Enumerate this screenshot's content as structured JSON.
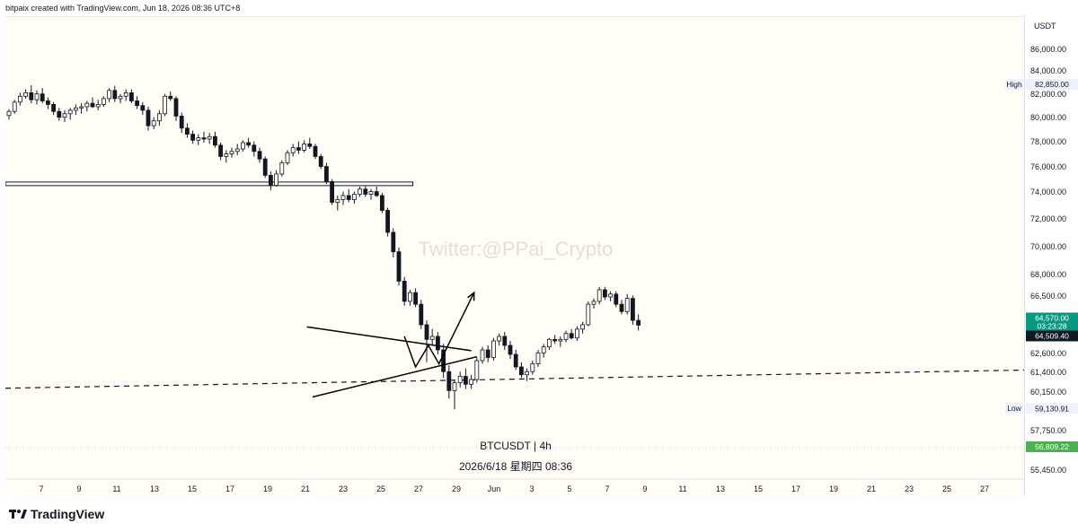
{
  "header": {
    "attribution": "bitpaix created with TradingView.com, Jun 18, 2026 08:36 UTC+8"
  },
  "footer": {
    "brand": "TradingView"
  },
  "watermark": {
    "text": "Twitter:@PPai_Crypto"
  },
  "overlay": {
    "symbol_line": "BTCUSDT | 4h",
    "date_line": "2026/6/18 星期四 08:36"
  },
  "colors": {
    "up": "#131722",
    "down": "#131722",
    "current_label_bg": "#089981",
    "last_label_bg": "#131722",
    "dashed_label_bg": "#4caf50",
    "annotation": "#000000",
    "background": "#fffdf6"
  },
  "chart_data": {
    "type": "candlestick",
    "symbol": "BTCUSDT",
    "interval": "4h",
    "currency": "USDT",
    "ylim": [
      54800,
      88200
    ],
    "y_ticks": [
      {
        "value": 86000,
        "label": "86,000.00"
      },
      {
        "value": 84000,
        "label": "84,000.00"
      },
      {
        "value": 82000,
        "label": "82,000.00"
      },
      {
        "value": 80000,
        "label": "80,000.00"
      },
      {
        "value": 78000,
        "label": "78,000.00"
      },
      {
        "value": 76000,
        "label": "76,000.00"
      },
      {
        "value": 74000,
        "label": "74,000.00"
      },
      {
        "value": 72000,
        "label": "72,000.00"
      },
      {
        "value": 70000,
        "label": "70,000.00"
      },
      {
        "value": 68000,
        "label": "68,000.00"
      },
      {
        "value": 66500,
        "label": "66,500.00"
      },
      {
        "value": 63800,
        "label": "63,800.00"
      },
      {
        "value": 62600,
        "label": "62,600.00"
      },
      {
        "value": 61400,
        "label": "61,400.00"
      },
      {
        "value": 60150,
        "label": "60,150.00"
      },
      {
        "value": 57750,
        "label": "57,750.00"
      },
      {
        "value": 55450,
        "label": "55,450.00"
      }
    ],
    "x_ticks": [
      "7",
      "9",
      "11",
      "13",
      "15",
      "17",
      "19",
      "21",
      "23",
      "25",
      "27",
      "29",
      "Jun",
      "3",
      "5",
      "7",
      "9",
      "11",
      "13",
      "15",
      "17",
      "19",
      "21",
      "23",
      "25",
      "27"
    ],
    "price_labels": {
      "high": {
        "tag": "High",
        "value": "82,850.00",
        "price": 82850
      },
      "low": {
        "tag": "Low",
        "value": "59,130.91",
        "price": 59130.91
      },
      "current": {
        "value": "64,570.00",
        "countdown": "03:23:28",
        "price": 64570
      },
      "last": {
        "value": "64,509.40",
        "price": 64509.4
      },
      "dashed_level": {
        "value": "56,809.22",
        "price": 56809.22
      }
    },
    "candles": [
      [
        80250,
        80800,
        79900,
        80600
      ],
      [
        80600,
        81600,
        80400,
        81400
      ],
      [
        81400,
        82200,
        81100,
        81900
      ],
      [
        81900,
        82500,
        81700,
        82200
      ],
      [
        82200,
        82850,
        81300,
        81600
      ],
      [
        81600,
        82400,
        81200,
        82100
      ],
      [
        82100,
        82600,
        81300,
        81500
      ],
      [
        81500,
        81800,
        80800,
        81200
      ],
      [
        81200,
        81400,
        80300,
        80600
      ],
      [
        80600,
        80900,
        79800,
        80100
      ],
      [
        80100,
        80700,
        79700,
        80400
      ],
      [
        80400,
        80900,
        79900,
        80700
      ],
      [
        80700,
        81200,
        80300,
        80900
      ],
      [
        80900,
        81300,
        80400,
        81000
      ],
      [
        81000,
        81500,
        80600,
        81300
      ],
      [
        81300,
        81800,
        80900,
        81000
      ],
      [
        81000,
        81600,
        80700,
        81200
      ],
      [
        81200,
        81900,
        81000,
        81700
      ],
      [
        81700,
        82600,
        81400,
        82400
      ],
      [
        82400,
        82800,
        81400,
        81700
      ],
      [
        81700,
        82100,
        81300,
        81900
      ],
      [
        81900,
        82500,
        81500,
        82200
      ],
      [
        82200,
        82500,
        81300,
        81500
      ],
      [
        81500,
        81900,
        80800,
        81100
      ],
      [
        81100,
        81400,
        80300,
        80700
      ],
      [
        80700,
        81000,
        79000,
        79400
      ],
      [
        79400,
        80100,
        79100,
        79800
      ],
      [
        79800,
        80700,
        79400,
        80400
      ],
      [
        80400,
        82100,
        80200,
        81900
      ],
      [
        81900,
        82300,
        81500,
        81700
      ],
      [
        81700,
        81900,
        79800,
        80200
      ],
      [
        80200,
        80500,
        78800,
        79200
      ],
      [
        79200,
        79600,
        78400,
        78700
      ],
      [
        78700,
        79000,
        77900,
        78200
      ],
      [
        78200,
        78700,
        77800,
        78400
      ],
      [
        78400,
        78900,
        78000,
        78300
      ],
      [
        78300,
        78800,
        77900,
        78500
      ],
      [
        78500,
        78900,
        77600,
        77800
      ],
      [
        77800,
        78000,
        76600,
        76900
      ],
      [
        76900,
        77400,
        76400,
        77100
      ],
      [
        77100,
        77600,
        76800,
        77300
      ],
      [
        77300,
        77900,
        77000,
        77500
      ],
      [
        77500,
        78200,
        77300,
        78000
      ],
      [
        78000,
        78400,
        77600,
        77800
      ],
      [
        77800,
        78100,
        76900,
        77300
      ],
      [
        77300,
        77600,
        76400,
        76700
      ],
      [
        76700,
        76900,
        75200,
        75400
      ],
      [
        75400,
        75700,
        74200,
        74600
      ],
      [
        74600,
        75800,
        74500,
        75500
      ],
      [
        75500,
        76600,
        75300,
        76400
      ],
      [
        76400,
        77400,
        76200,
        77200
      ],
      [
        77200,
        77900,
        76900,
        77600
      ],
      [
        77600,
        78100,
        77100,
        77400
      ],
      [
        77400,
        78200,
        77200,
        77900
      ],
      [
        77900,
        78400,
        77500,
        77700
      ],
      [
        77700,
        77900,
        76700,
        76900
      ],
      [
        76900,
        77100,
        75900,
        76100
      ],
      [
        76100,
        76400,
        74700,
        74900
      ],
      [
        74900,
        75100,
        73100,
        73300
      ],
      [
        73300,
        73800,
        72700,
        73500
      ],
      [
        73500,
        74100,
        73100,
        73800
      ],
      [
        73800,
        74300,
        73300,
        73500
      ],
      [
        73500,
        74100,
        73200,
        73900
      ],
      [
        73900,
        74500,
        73700,
        74300
      ],
      [
        74300,
        74600,
        73700,
        73900
      ],
      [
        73900,
        74300,
        73500,
        74100
      ],
      [
        74100,
        74500,
        73700,
        73800
      ],
      [
        73800,
        74000,
        72500,
        72700
      ],
      [
        72700,
        72900,
        70800,
        71100
      ],
      [
        71100,
        71400,
        69300,
        69700
      ],
      [
        69700,
        70000,
        67300,
        67600
      ],
      [
        67600,
        67900,
        65900,
        66200
      ],
      [
        66200,
        67000,
        65900,
        66800
      ],
      [
        66800,
        67100,
        65800,
        66000
      ],
      [
        66000,
        66300,
        64300,
        64600
      ],
      [
        64600,
        64900,
        62100,
        63600
      ],
      [
        63600,
        64300,
        63200,
        63800
      ],
      [
        63800,
        64100,
        62600,
        62900
      ],
      [
        62900,
        63300,
        61100,
        61500
      ],
      [
        61500,
        61900,
        59800,
        60300
      ],
      [
        60300,
        61000,
        59130.91,
        60800
      ],
      [
        60800,
        61500,
        60500,
        61200
      ],
      [
        61200,
        61700,
        60400,
        60700
      ],
      [
        60700,
        61300,
        60400,
        61000
      ],
      [
        61000,
        62400,
        60800,
        62200
      ],
      [
        62200,
        63100,
        62000,
        62900
      ],
      [
        62900,
        63200,
        62100,
        62400
      ],
      [
        62400,
        63700,
        62200,
        63500
      ],
      [
        63500,
        64000,
        63200,
        63800
      ],
      [
        63800,
        64100,
        62900,
        63200
      ],
      [
        63200,
        63500,
        62300,
        62600
      ],
      [
        62600,
        62900,
        61600,
        61800
      ],
      [
        61800,
        62100,
        61100,
        61300
      ],
      [
        61300,
        61700,
        60900,
        61500
      ],
      [
        61500,
        62200,
        61300,
        62000
      ],
      [
        62000,
        62900,
        61800,
        62700
      ],
      [
        62700,
        63300,
        62400,
        63100
      ],
      [
        63100,
        63700,
        62900,
        63600
      ],
      [
        63600,
        63900,
        63300,
        63500
      ],
      [
        63500,
        63800,
        63100,
        63600
      ],
      [
        63600,
        64200,
        63400,
        64000
      ],
      [
        64000,
        64300,
        63600,
        63700
      ],
      [
        63700,
        64500,
        63500,
        64300
      ],
      [
        64300,
        64800,
        64000,
        64600
      ],
      [
        64600,
        66200,
        64500,
        66000
      ],
      [
        66000,
        66400,
        65700,
        66200
      ],
      [
        66200,
        67200,
        66000,
        67000
      ],
      [
        67000,
        67200,
        66300,
        66500
      ],
      [
        66500,
        66900,
        66200,
        66700
      ],
      [
        66700,
        66900,
        65800,
        66000
      ],
      [
        66000,
        66300,
        65300,
        65500
      ],
      [
        65500,
        66700,
        65300,
        66400
      ],
      [
        66400,
        66600,
        64600,
        64900
      ],
      [
        64900,
        65300,
        64200,
        64570
      ]
    ],
    "annotations": [
      {
        "kind": "resistance_zone",
        "from": {
          "x": 0,
          "y": 74650
        },
        "to": {
          "x": 0.4,
          "y": 74650
        }
      },
      {
        "kind": "trendline_dashed",
        "from": {
          "x": 0,
          "y": 60450
        },
        "to": {
          "x": 1,
          "y": 61600
        }
      },
      {
        "kind": "trendline",
        "name": "triangle_upper",
        "from": {
          "t": 53.5,
          "y": 64450
        },
        "to": {
          "t": 83,
          "y": 62850
        }
      },
      {
        "kind": "trendline",
        "name": "triangle_lower",
        "from": {
          "t": 54.5,
          "y": 59900
        },
        "to": {
          "t": 84,
          "y": 62450
        }
      },
      {
        "kind": "zigzag_arrow",
        "points": [
          {
            "t": 71.0,
            "y": 63800
          },
          {
            "t": 73.0,
            "y": 61800
          },
          {
            "t": 75.3,
            "y": 63200
          },
          {
            "t": 77.2,
            "y": 62000
          },
          {
            "t": 83.5,
            "y": 66800
          }
        ]
      }
    ]
  }
}
